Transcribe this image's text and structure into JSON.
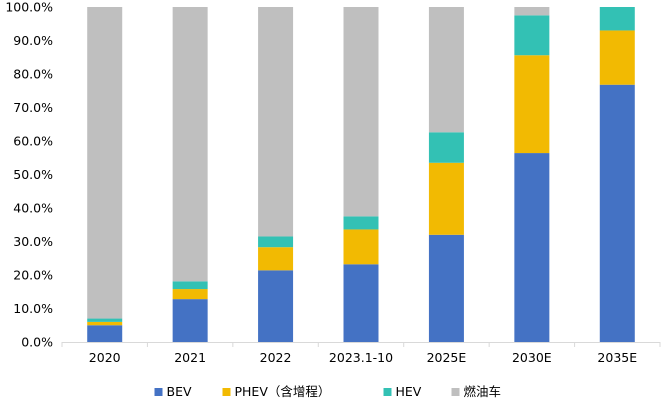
{
  "chart_data": {
    "type": "bar",
    "stacked": true,
    "categories": [
      "2020",
      "2021",
      "2022",
      "2023.1-10",
      "2025E",
      "2030E",
      "2035E"
    ],
    "series": [
      {
        "name": "BEV",
        "color": "#4472C4",
        "values": [
          5.0,
          12.8,
          21.4,
          23.2,
          32.0,
          56.4,
          76.8
        ]
      },
      {
        "name": "PHEV（含增程）",
        "color": "#F2BA02",
        "values": [
          1.0,
          3.0,
          6.9,
          10.4,
          21.5,
          29.2,
          16.2
        ]
      },
      {
        "name": "HEV",
        "color": "#33C1B4",
        "values": [
          1.0,
          2.3,
          3.2,
          3.9,
          9.1,
          11.9,
          7.0
        ]
      },
      {
        "name": "燃油车",
        "color": "#BFBFBF",
        "values": [
          93.0,
          81.9,
          68.5,
          62.5,
          37.4,
          2.5,
          0.0
        ]
      }
    ],
    "y_ticks": [
      "0.0%",
      "10.0%",
      "20.0%",
      "30.0%",
      "40.0%",
      "50.0%",
      "60.0%",
      "70.0%",
      "80.0%",
      "90.0%",
      "100.0%"
    ],
    "ylim": [
      0,
      100
    ],
    "legend_position": "bottom",
    "grid": false
  }
}
